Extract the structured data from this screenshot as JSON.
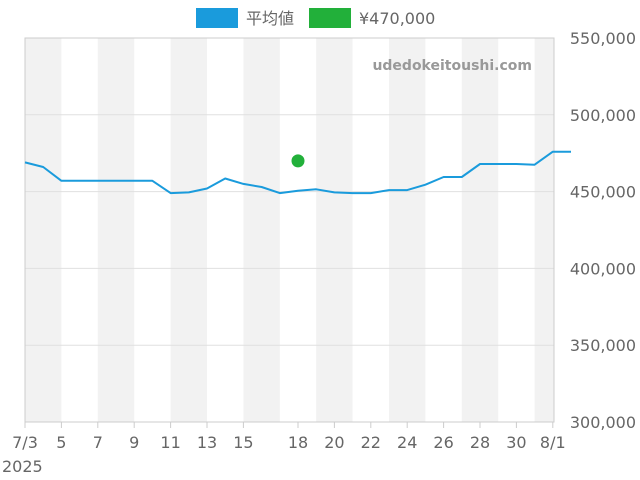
{
  "colors": {
    "average": "#1a9bdc",
    "single": "#22b03a",
    "band": "#f2f2f2",
    "grid": "#e0e0e0",
    "axis": "#cccccc"
  },
  "legend": [
    {
      "label": "平均値",
      "color": "#1a9bdc",
      "icon": "legend-swatch"
    },
    {
      "label": "¥470,000",
      "color": "#22b03a",
      "icon": "legend-swatch"
    }
  ],
  "watermark": "udedokeitoushi.com",
  "chart_data": {
    "type": "line",
    "x": [
      "2025-07-03",
      "2025-07-04",
      "2025-07-05",
      "2025-07-06",
      "2025-07-07",
      "2025-07-08",
      "2025-07-09",
      "2025-07-10",
      "2025-07-11",
      "2025-07-12",
      "2025-07-13",
      "2025-07-14",
      "2025-07-15",
      "2025-07-16",
      "2025-07-17",
      "2025-07-18",
      "2025-07-19",
      "2025-07-20",
      "2025-07-21",
      "2025-07-22",
      "2025-07-23",
      "2025-07-24",
      "2025-07-25",
      "2025-07-26",
      "2025-07-27",
      "2025-07-28",
      "2025-07-29",
      "2025-07-30",
      "2025-07-31",
      "2025-08-01",
      "2025-08-02"
    ],
    "series": [
      {
        "name": "平均値",
        "color": "#1a9bdc",
        "values": [
          469000,
          466000,
          457000,
          457000,
          457000,
          457000,
          457000,
          457000,
          449000,
          449500,
          452000,
          458500,
          455000,
          453000,
          449000,
          450500,
          451500,
          449500,
          449000,
          449000,
          451000,
          451000,
          454500,
          459500,
          459500,
          468000,
          468000,
          468000,
          467500,
          476000,
          476000
        ]
      },
      {
        "name": "¥470,000",
        "color": "#22b03a",
        "points": [
          {
            "x": "2025-07-18",
            "y": 470000
          }
        ]
      }
    ],
    "x_tick_labels": [
      "7/3",
      "5",
      "7",
      "9",
      "11",
      "13",
      "15",
      "18",
      "20",
      "22",
      "24",
      "26",
      "28",
      "30",
      "8/1"
    ],
    "x_tick_dates": [
      "2025-07-03",
      "2025-07-05",
      "2025-07-07",
      "2025-07-09",
      "2025-07-11",
      "2025-07-13",
      "2025-07-15",
      "2025-07-18",
      "2025-07-20",
      "2025-07-22",
      "2025-07-24",
      "2025-07-26",
      "2025-07-28",
      "2025-07-30",
      "2025-08-01"
    ],
    "x_year_label": "2025",
    "y_tick_labels": [
      "550,000",
      "500,000",
      "450,000",
      "400,000",
      "350,000",
      "300,000"
    ],
    "ylim": [
      300000,
      550000
    ],
    "y_axis_side": "right",
    "grid": true,
    "legend_position": "top-center"
  }
}
